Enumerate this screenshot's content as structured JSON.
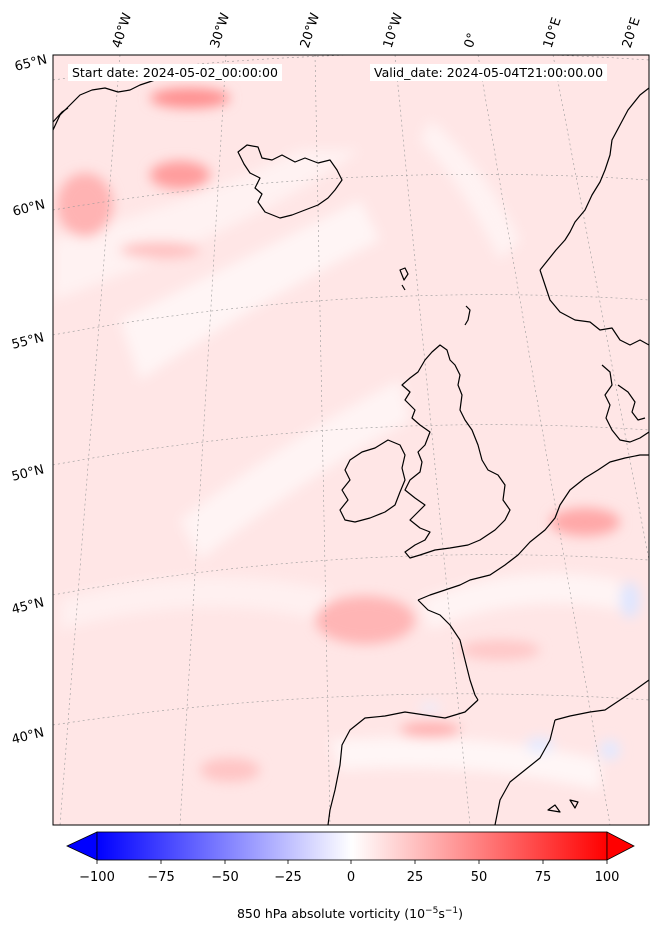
{
  "map": {
    "start_label": "Start date: 2024-05-02_00:00:00",
    "valid_label": "Valid_date: 2024-05-04T21:00:00.00",
    "lon_labels": [
      "40°W",
      "30°W",
      "20°W",
      "10°W",
      "0°",
      "10°E",
      "20°E"
    ],
    "lat_labels": [
      "65°N",
      "60°N",
      "55°N",
      "50°N",
      "45°N",
      "40°N"
    ],
    "field": "850 hPa absolute vorticity",
    "colors": {
      "land_outline": "#000000",
      "positive": "#ff0000",
      "negative": "#0000ff",
      "neutral": "#ffffff",
      "background_field": "#ffe3e3"
    }
  },
  "colorbar": {
    "ticks": [
      "−100",
      "−75",
      "−50",
      "−25",
      "0",
      "25",
      "50",
      "75",
      "100"
    ],
    "label_prefix": "850 hPa absolute vorticity (10",
    "exp1": "−5",
    "label_mid": "s",
    "exp2": "−1",
    "label_suffix": ")",
    "range": [
      -100,
      100
    ],
    "cmap": "bwr"
  }
}
